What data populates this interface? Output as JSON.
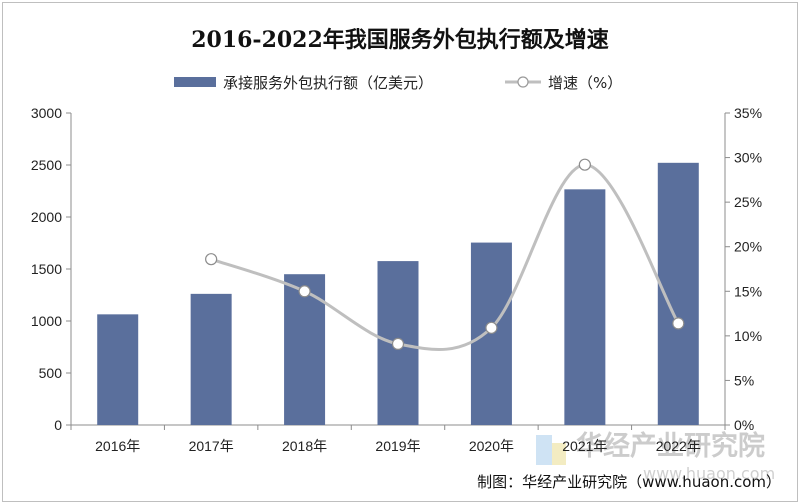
{
  "chart_data": {
    "type": "bar",
    "title": "2016-2022年我国服务外包执行额及增速",
    "categories": [
      "2016年",
      "2017年",
      "2018年",
      "2019年",
      "2020年",
      "2021年",
      "2022年"
    ],
    "series": [
      {
        "name": "承接服务外包执行额（亿美元）",
        "type": "bar",
        "axis": "left",
        "color": "#5a6f9c",
        "values": [
          1064,
          1261,
          1450,
          1576,
          1754,
          2266,
          2521
        ]
      },
      {
        "name": "增速（%）",
        "type": "line",
        "axis": "right",
        "color": "#bfbfbf",
        "values": [
          null,
          18.6,
          15.0,
          9.1,
          10.9,
          29.2,
          11.4
        ]
      }
    ],
    "y_left": {
      "min": 0,
      "max": 3000,
      "ticks": [
        "0",
        "500",
        "1000",
        "1500",
        "2000",
        "2500",
        "3000"
      ]
    },
    "y_right": {
      "min": 0,
      "max": 35,
      "ticks": [
        "0%",
        "5%",
        "10%",
        "15%",
        "20%",
        "25%",
        "30%",
        "35%"
      ]
    },
    "grid": false,
    "legend_position": "top"
  },
  "source": "制图：华经产业研究院（www.huaon.com）",
  "watermark": {
    "text": "华经产业研究院",
    "url": "www.huaon.com"
  }
}
